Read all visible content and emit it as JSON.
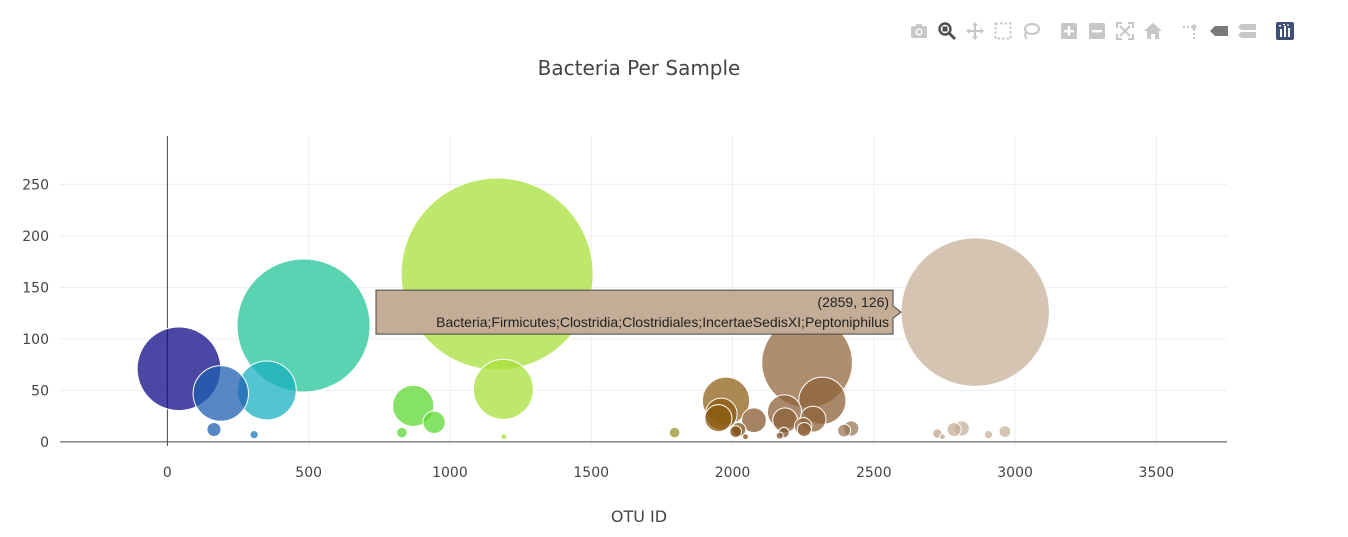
{
  "modebar": {
    "buttons": [
      {
        "name": "camera-icon",
        "title": "Download plot as a png"
      },
      {
        "name": "zoom-icon",
        "title": "Zoom",
        "active": true
      },
      {
        "name": "pan-icon",
        "title": "Pan"
      },
      {
        "name": "box-select-icon",
        "title": "Box Select"
      },
      {
        "name": "lasso-select-icon",
        "title": "Lasso Select"
      },
      {
        "name": "zoom-in-icon",
        "title": "Zoom in"
      },
      {
        "name": "zoom-out-icon",
        "title": "Zoom out"
      },
      {
        "name": "autoscale-icon",
        "title": "Autoscale"
      },
      {
        "name": "reset-axes-icon",
        "title": "Reset axes"
      },
      {
        "name": "spike-lines-icon",
        "title": "Toggle Spike Lines"
      },
      {
        "name": "hover-closest-icon",
        "title": "Show closest data on hover"
      },
      {
        "name": "hover-compare-icon",
        "title": "Compare data on hover"
      },
      {
        "name": "plotly-logo-icon",
        "title": "Produced with Plotly"
      }
    ]
  },
  "chart_data": {
    "type": "scatter",
    "title": "Bacteria Per Sample",
    "xlabel": "OTU ID",
    "ylabel": "",
    "xlim": [
      -380,
      3750
    ],
    "ylim": [
      -4,
      297
    ],
    "xticks": [
      0,
      500,
      1000,
      1500,
      2000,
      2500,
      3000,
      3500
    ],
    "yticks": [
      0,
      50,
      100,
      150,
      200,
      250
    ],
    "grid": true,
    "marker_size_encodes": "y",
    "colorscale": "Earth",
    "points": [
      {
        "x": 41,
        "y": 71,
        "color": "#0d0a87"
      },
      {
        "x": 189,
        "y": 47,
        "color": "#1f5fb0"
      },
      {
        "x": 165,
        "y": 12,
        "color": "#1f5fb0"
      },
      {
        "x": 307,
        "y": 7,
        "color": "#1a78c2"
      },
      {
        "x": 352,
        "y": 50,
        "color": "#1ab0c0"
      },
      {
        "x": 482,
        "y": 113,
        "color": "#22c497"
      },
      {
        "x": 870,
        "y": 35,
        "color": "#5cd833"
      },
      {
        "x": 944,
        "y": 19,
        "color": "#5cd833"
      },
      {
        "x": 830,
        "y": 9,
        "color": "#5cd833"
      },
      {
        "x": 1167,
        "y": 163,
        "color": "#a8e03a"
      },
      {
        "x": 1189,
        "y": 51,
        "color": "#a8e03a"
      },
      {
        "x": 1191,
        "y": 5,
        "color": "#a8e03a"
      },
      {
        "x": 1795,
        "y": 9,
        "color": "#9a8f2c"
      },
      {
        "x": 1977,
        "y": 40,
        "color": "#906018"
      },
      {
        "x": 1960,
        "y": 27,
        "color": "#8c5b12"
      },
      {
        "x": 1950,
        "y": 23,
        "color": "#8c5b12"
      },
      {
        "x": 2011,
        "y": 10,
        "color": "#7e4e14"
      },
      {
        "x": 2022,
        "y": 12,
        "color": "#7e4e14"
      },
      {
        "x": 2046,
        "y": 5,
        "color": "#7e4e14"
      },
      {
        "x": 2076,
        "y": 21,
        "color": "#85582e"
      },
      {
        "x": 2264,
        "y": 77,
        "color": "#946840"
      },
      {
        "x": 2318,
        "y": 40,
        "color": "#8c6238"
      },
      {
        "x": 2184,
        "y": 29,
        "color": "#8c6238"
      },
      {
        "x": 2186,
        "y": 21,
        "color": "#8c6238"
      },
      {
        "x": 2182,
        "y": 9,
        "color": "#7f5530"
      },
      {
        "x": 2167,
        "y": 6,
        "color": "#7f5530"
      },
      {
        "x": 2250,
        "y": 15,
        "color": "#8c6238"
      },
      {
        "x": 2254,
        "y": 12,
        "color": "#8c6238"
      },
      {
        "x": 2285,
        "y": 22,
        "color": "#8c6238"
      },
      {
        "x": 2395,
        "y": 11,
        "color": "#9a7558"
      },
      {
        "x": 2420,
        "y": 13,
        "color": "#9a7558"
      },
      {
        "x": 2859,
        "y": 126,
        "color": "#c8b09a"
      },
      {
        "x": 2725,
        "y": 8,
        "color": "#c0a890"
      },
      {
        "x": 2743,
        "y": 5,
        "color": "#c0a890"
      },
      {
        "x": 2784,
        "y": 12,
        "color": "#c8b09a"
      },
      {
        "x": 2811,
        "y": 13,
        "color": "#c8b09a"
      },
      {
        "x": 2906,
        "y": 7,
        "color": "#c8b09a"
      },
      {
        "x": 2964,
        "y": 10,
        "color": "#c8b09a"
      }
    ],
    "hover": {
      "x": 2859,
      "y": 126,
      "coords": "(2859, 126)",
      "label": "Bacteria;Firmicutes;Clostridia;Clostridiales;IncertaeSedisXI;Peptoniphilus",
      "bgcolor": "#c4ad96"
    }
  }
}
